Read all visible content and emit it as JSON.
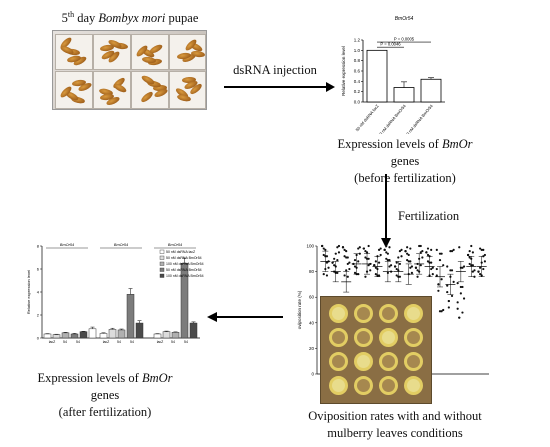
{
  "top_label": {
    "prefix": "5",
    "sup": "th",
    "mid": " day ",
    "species": "Bombyx mori",
    "suffix": " pupae"
  },
  "arrow_dsrna": "dsRNA injection",
  "chart_top_title": "BmOr54",
  "chart_top": {
    "type": "bar",
    "ylabel": "Relative expression level",
    "categories": [
      "50 nM dsRNA lacZ",
      "50 nM dsRNA BmOr54",
      "100 nM dsRNA BmOr54"
    ],
    "values": [
      1.0,
      0.28,
      0.44
    ],
    "errors": [
      0.0,
      0.11,
      0.03
    ],
    "ylim": [
      0,
      1.2
    ],
    "yticks": [
      "0.0",
      "0.2",
      "0.4",
      "0.6",
      "0.8",
      "1.0",
      "1.2"
    ],
    "sig": [
      {
        "label": "P = 0.0046"
      },
      {
        "label": "P = 0.0005"
      }
    ]
  },
  "caption_before": {
    "l1a": "Expression levels of ",
    "l1b": "BmOr",
    "l1c": " genes",
    "l2": "(before fertilization)"
  },
  "arrow_fert": "Fertilization",
  "chart_left": {
    "type": "bar",
    "ylabel": "Relative expression level",
    "groups": [
      "BmOr54",
      "BmOr54",
      "BmOr54"
    ],
    "legend": [
      "50 nM dsRNA lacZ",
      "50 nM dsRNA BmOr54",
      "100 nM dsRNA BmOr54",
      "50 nM dsRNA BmOr54",
      "100 nM dsRNA BmOr54"
    ],
    "values": [
      0.35,
      0.3,
      0.45,
      0.35,
      0.55,
      0.8,
      0.4,
      0.75,
      0.7,
      3.8,
      1.3,
      0.35,
      0.55,
      0.5,
      6.5,
      1.3
    ],
    "errors": [
      0.03,
      0.03,
      0.04,
      0.05,
      0.03,
      0.15,
      0.05,
      0.1,
      0.08,
      0.5,
      0.2,
      0.03,
      0.05,
      0.03,
      0.45,
      0.1
    ],
    "ylim": [
      0,
      8
    ],
    "yticks": [
      "0",
      "2",
      "4",
      "6",
      "8"
    ]
  },
  "caption_after": {
    "l1a": "Expression levels of ",
    "l1b": "BmOr",
    "l1c": " genes",
    "l2": "(after fertilization)"
  },
  "chart_dot": {
    "type": "scatter",
    "ylabel": "oviposition rate (%)",
    "yticks": [
      "0",
      "20",
      "40",
      "60",
      "80",
      "100"
    ],
    "ylim": [
      0,
      100
    ],
    "means": [
      88,
      80,
      72,
      86,
      86,
      84,
      80,
      80,
      78,
      86,
      84,
      76,
      70,
      80,
      84,
      84
    ]
  },
  "caption_ovi": {
    "l1": "Oviposition rates with and without",
    "l2": "mulberry leaves conditions"
  }
}
